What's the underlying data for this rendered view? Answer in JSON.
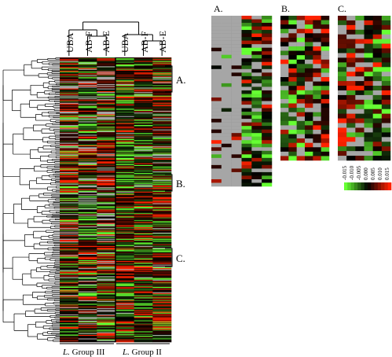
{
  "figure": {
    "column_labels": [
      "UBA",
      "AB-F",
      "AB-E",
      "UBA",
      "AB-F",
      "AB-E"
    ],
    "main_heatmap": {
      "rows": 320,
      "columns": 6
    },
    "cluster_markers": [
      {
        "label": "A."
      },
      {
        "label": "B."
      },
      {
        "label": "C."
      }
    ],
    "groups": [
      {
        "italic": "L.",
        "rest": " Group III"
      },
      {
        "italic": "L.",
        "rest": " Group II"
      }
    ],
    "zoom_panels": [
      {
        "label": "A.",
        "rows": 48,
        "columns": 6
      },
      {
        "label": "B.",
        "rows": 33,
        "columns": 6
      },
      {
        "label": "C.",
        "rows": 31,
        "columns": 6
      }
    ],
    "color_scale": {
      "ticks": [
        "-0.015",
        "-0.010",
        "-0.005",
        "0.000",
        "0.005",
        "0.010",
        "0.015"
      ],
      "low_color": "#66ff33",
      "mid_color": "#000000",
      "high_color": "#ff2200",
      "missing_color": "#a6a6a6"
    }
  }
}
